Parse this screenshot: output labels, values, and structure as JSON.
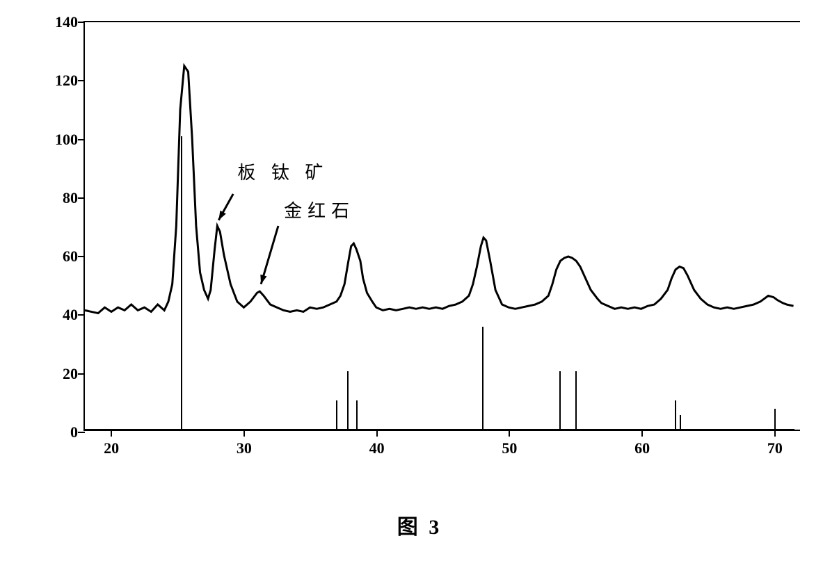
{
  "chart": {
    "type": "line",
    "xlim": [
      18,
      72
    ],
    "ylim": [
      0,
      140
    ],
    "xtick_positions": [
      20,
      30,
      40,
      50,
      60,
      70
    ],
    "xtick_labels": [
      "20",
      "30",
      "40",
      "50",
      "60",
      "70"
    ],
    "ytick_positions": [
      0,
      20,
      40,
      60,
      80,
      100,
      120,
      140
    ],
    "ytick_labels": [
      "0",
      "20",
      "40",
      "60",
      "80",
      "100",
      "120",
      "140"
    ],
    "line_color": "#000000",
    "line_width": 3,
    "background_color": "#ffffff",
    "curve_data": [
      [
        18,
        41
      ],
      [
        19,
        40
      ],
      [
        19.5,
        42
      ],
      [
        20,
        40.5
      ],
      [
        20.5,
        42
      ],
      [
        21,
        41
      ],
      [
        21.5,
        43
      ],
      [
        22,
        41
      ],
      [
        22.5,
        42
      ],
      [
        23,
        40.5
      ],
      [
        23.5,
        43
      ],
      [
        24,
        41
      ],
      [
        24.3,
        44
      ],
      [
        24.6,
        50
      ],
      [
        24.9,
        70
      ],
      [
        25.2,
        110
      ],
      [
        25.5,
        125
      ],
      [
        25.8,
        123
      ],
      [
        26.1,
        100
      ],
      [
        26.4,
        70
      ],
      [
        26.7,
        54
      ],
      [
        27,
        48
      ],
      [
        27.3,
        45
      ],
      [
        27.5,
        48
      ],
      [
        27.8,
        62
      ],
      [
        28,
        70
      ],
      [
        28.2,
        68
      ],
      [
        28.5,
        60
      ],
      [
        29,
        50
      ],
      [
        29.5,
        44
      ],
      [
        30,
        42
      ],
      [
        30.5,
        44
      ],
      [
        31,
        47
      ],
      [
        31.2,
        47.5
      ],
      [
        31.5,
        46
      ],
      [
        32,
        43
      ],
      [
        32.5,
        42
      ],
      [
        33,
        41
      ],
      [
        33.5,
        40.5
      ],
      [
        34,
        41
      ],
      [
        34.5,
        40.5
      ],
      [
        35,
        42
      ],
      [
        35.5,
        41.5
      ],
      [
        36,
        42
      ],
      [
        36.5,
        43
      ],
      [
        37,
        44
      ],
      [
        37.3,
        46
      ],
      [
        37.6,
        50
      ],
      [
        37.9,
        58
      ],
      [
        38.1,
        63
      ],
      [
        38.3,
        64
      ],
      [
        38.5,
        62
      ],
      [
        38.8,
        58
      ],
      [
        39,
        52
      ],
      [
        39.3,
        47
      ],
      [
        39.7,
        44
      ],
      [
        40,
        42
      ],
      [
        40.5,
        41
      ],
      [
        41,
        41.5
      ],
      [
        41.5,
        41
      ],
      [
        42,
        41.5
      ],
      [
        42.5,
        42
      ],
      [
        43,
        41.5
      ],
      [
        43.5,
        42
      ],
      [
        44,
        41.5
      ],
      [
        44.5,
        42
      ],
      [
        45,
        41.5
      ],
      [
        45.5,
        42.5
      ],
      [
        46,
        43
      ],
      [
        46.5,
        44
      ],
      [
        47,
        46
      ],
      [
        47.3,
        50
      ],
      [
        47.6,
        56
      ],
      [
        47.9,
        63
      ],
      [
        48.1,
        66
      ],
      [
        48.3,
        65
      ],
      [
        48.6,
        58
      ],
      [
        49,
        48
      ],
      [
        49.5,
        43
      ],
      [
        50,
        42
      ],
      [
        50.5,
        41.5
      ],
      [
        51,
        42
      ],
      [
        51.5,
        42.5
      ],
      [
        52,
        43
      ],
      [
        52.5,
        44
      ],
      [
        53,
        46
      ],
      [
        53.3,
        50
      ],
      [
        53.6,
        55
      ],
      [
        53.9,
        58
      ],
      [
        54.2,
        59
      ],
      [
        54.5,
        59.5
      ],
      [
        54.8,
        59
      ],
      [
        55.1,
        58
      ],
      [
        55.4,
        56
      ],
      [
        55.8,
        52
      ],
      [
        56.2,
        48
      ],
      [
        56.7,
        45
      ],
      [
        57,
        43.5
      ],
      [
        57.5,
        42.5
      ],
      [
        58,
        41.5
      ],
      [
        58.5,
        42
      ],
      [
        59,
        41.5
      ],
      [
        59.5,
        42
      ],
      [
        60,
        41.5
      ],
      [
        60.5,
        42.5
      ],
      [
        61,
        43
      ],
      [
        61.5,
        45
      ],
      [
        62,
        48
      ],
      [
        62.3,
        52
      ],
      [
        62.6,
        55
      ],
      [
        62.9,
        56
      ],
      [
        63.2,
        55.5
      ],
      [
        63.5,
        53
      ],
      [
        64,
        48
      ],
      [
        64.5,
        45
      ],
      [
        65,
        43
      ],
      [
        65.5,
        42
      ],
      [
        66,
        41.5
      ],
      [
        66.5,
        42
      ],
      [
        67,
        41.5
      ],
      [
        67.5,
        42
      ],
      [
        68,
        42.5
      ],
      [
        68.5,
        43
      ],
      [
        69,
        44
      ],
      [
        69.3,
        45
      ],
      [
        69.6,
        46
      ],
      [
        70,
        45.5
      ],
      [
        70.3,
        44.5
      ],
      [
        70.7,
        43.5
      ],
      [
        71,
        43
      ],
      [
        71.5,
        42.5
      ]
    ],
    "reference_baseline_y": 1,
    "reference_peaks": [
      {
        "x": 25.3,
        "height": 100
      },
      {
        "x": 37,
        "height": 10
      },
      {
        "x": 37.8,
        "height": 20
      },
      {
        "x": 38.5,
        "height": 10
      },
      {
        "x": 48,
        "height": 35
      },
      {
        "x": 53.8,
        "height": 20
      },
      {
        "x": 55,
        "height": 20
      },
      {
        "x": 62.5,
        "height": 10
      },
      {
        "x": 62.9,
        "height": 5
      },
      {
        "x": 70,
        "height": 7
      }
    ],
    "annotations": [
      {
        "text": "板 钛 矿",
        "x_label": 29.5,
        "y_label": 90,
        "arrow_from": [
          29.2,
          81
        ],
        "arrow_to": [
          28.1,
          72
        ]
      },
      {
        "text": "金红石",
        "x_label": 33,
        "y_label": 77,
        "arrow_from": [
          32.6,
          70
        ],
        "arrow_to": [
          31.3,
          50
        ]
      }
    ]
  },
  "caption": "图 3",
  "tick_fontsize": 22,
  "annotation_fontsize": 26,
  "caption_fontsize": 30
}
